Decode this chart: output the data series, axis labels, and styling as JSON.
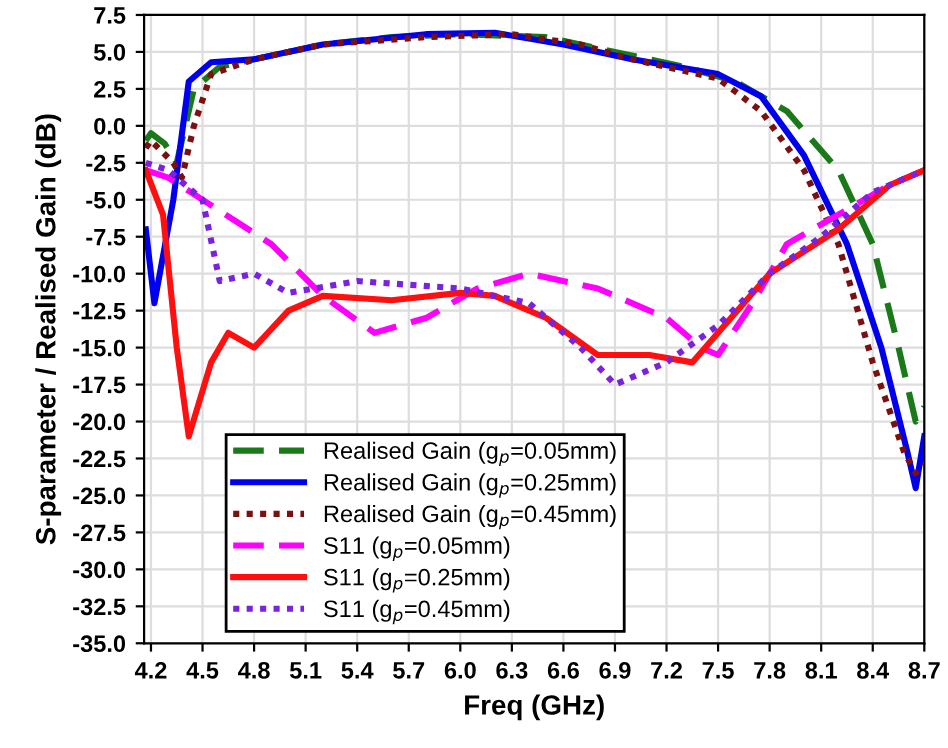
{
  "chart_data": {
    "type": "line",
    "xlabel": "Freq (GHz)",
    "ylabel": "S-parameter / Realised Gain (dB)",
    "xlim": [
      4.16,
      8.7
    ],
    "ylim": [
      -35,
      7.5
    ],
    "xticks": [
      {
        "value": 4.2,
        "label": "4.2"
      },
      {
        "value": 4.5,
        "label": "4.5"
      },
      {
        "value": 4.8,
        "label": "4.8"
      },
      {
        "value": 5.1,
        "label": "5.1"
      },
      {
        "value": 5.4,
        "label": "5.4"
      },
      {
        "value": 5.7,
        "label": "5.7"
      },
      {
        "value": 6.0,
        "label": "6.0"
      },
      {
        "value": 6.3,
        "label": "6.3"
      },
      {
        "value": 6.6,
        "label": "6.6"
      },
      {
        "value": 6.9,
        "label": "6.9"
      },
      {
        "value": 7.2,
        "label": "7.2"
      },
      {
        "value": 7.5,
        "label": "7.5"
      },
      {
        "value": 7.8,
        "label": "7.8"
      },
      {
        "value": 8.1,
        "label": "8.1"
      },
      {
        "value": 8.4,
        "label": "8.4"
      },
      {
        "value": 8.7,
        "label": "8.7"
      }
    ],
    "yticks": [
      {
        "value": 7.5,
        "label": "7.5"
      },
      {
        "value": 5,
        "label": "5.0"
      },
      {
        "value": 2.5,
        "label": "2.5"
      },
      {
        "value": 0,
        "label": "0.0"
      },
      {
        "value": -2.5,
        "label": "-2.5"
      },
      {
        "value": -5,
        "label": "-5.0"
      },
      {
        "value": -7.5,
        "label": "-7.5"
      },
      {
        "value": -10,
        "label": "-10.0"
      },
      {
        "value": -12.5,
        "label": "-12.5"
      },
      {
        "value": -15,
        "label": "-15.0"
      },
      {
        "value": -17.5,
        "label": "-17.5"
      },
      {
        "value": -20,
        "label": "-20.0"
      },
      {
        "value": -22.5,
        "label": "-22.5"
      },
      {
        "value": -25,
        "label": "-25.0"
      },
      {
        "value": -27.5,
        "label": "-27.5"
      },
      {
        "value": -30,
        "label": "-30.0"
      },
      {
        "value": -32.5,
        "label": "-32.5"
      },
      {
        "value": -35,
        "label": "-35.0"
      }
    ],
    "grid": true,
    "legend": "bottom left",
    "marker": "none",
    "series": [
      {
        "name": "Realised Gain (g$_{p}$=0.05mm)",
        "color": "#1a7a1a",
        "line_style": "dashed",
        "x": [
          4.17,
          4.2,
          4.28,
          4.35,
          4.45,
          4.6,
          4.8,
          5.2,
          5.6,
          6.0,
          6.5,
          6.9,
          7.3,
          7.6,
          7.9,
          8.2,
          8.4,
          8.55,
          8.65,
          8.7
        ],
        "values": [
          -1,
          -0.5,
          -1.2,
          -2.5,
          2.5,
          4,
          4.5,
          5.5,
          6,
          6.2,
          6,
          5,
          4,
          3,
          1,
          -3,
          -8,
          -15,
          -20,
          -19
        ]
      },
      {
        "name": "Realised Gain (g$_{p}$=0.25mm)",
        "color": "#0000ee",
        "line_style": "solid",
        "x": [
          4.17,
          4.22,
          4.33,
          4.42,
          4.55,
          4.8,
          5.2,
          5.8,
          6.2,
          6.6,
          7.0,
          7.5,
          7.75,
          8.0,
          8.25,
          8.45,
          8.6,
          8.65,
          8.7
        ],
        "values": [
          -7,
          -12,
          -5,
          3,
          4.3,
          4.5,
          5.5,
          6.2,
          6.3,
          5.5,
          4.5,
          3.5,
          2,
          -2,
          -8,
          -15,
          -22,
          -24.5,
          -21
        ]
      },
      {
        "name": "Realised Gain (g$_{p}$=0.45mm)",
        "color": "#7a1010",
        "line_style": "dotted",
        "x": [
          4.17,
          4.2,
          4.33,
          4.38,
          4.45,
          4.55,
          4.8,
          5.2,
          5.8,
          6.3,
          6.7,
          7.0,
          7.5,
          7.75,
          8.0,
          8.2,
          8.4,
          8.58,
          8.65,
          8.7
        ],
        "values": [
          -1.5,
          -1,
          -2.5,
          -3.5,
          0,
          3.5,
          4.5,
          5.5,
          6,
          6.2,
          5.5,
          4.5,
          3.2,
          1,
          -3,
          -8,
          -16,
          -22,
          -23.5,
          -23
        ]
      },
      {
        "name": "S11 (g$_{p}$=0.05mm)",
        "color": "#ff00ff",
        "line_style": "dashed",
        "x": [
          4.17,
          4.3,
          4.5,
          4.9,
          5.2,
          5.5,
          5.8,
          6.1,
          6.4,
          6.8,
          7.2,
          7.4,
          7.5,
          7.7,
          7.9,
          8.2,
          8.5,
          8.7
        ],
        "values": [
          -3,
          -3.5,
          -5,
          -8,
          -11.5,
          -14,
          -13,
          -11,
          -10,
          -11,
          -13,
          -15,
          -15.5,
          -12,
          -8,
          -6,
          -4,
          -3
        ]
      },
      {
        "name": "S11 (g$_{p}$=0.25mm)",
        "color": "#ff1010",
        "line_style": "solid",
        "x": [
          4.17,
          4.27,
          4.35,
          4.42,
          4.55,
          4.65,
          4.8,
          5.0,
          5.2,
          5.6,
          6.0,
          6.2,
          6.5,
          6.8,
          7.1,
          7.35,
          7.5,
          7.8,
          8.2,
          8.5,
          8.7
        ],
        "values": [
          -3,
          -6,
          -15,
          -21,
          -16,
          -14,
          -15,
          -12.5,
          -11.5,
          -11.8,
          -11.3,
          -11.5,
          -13,
          -15.5,
          -15.5,
          -16,
          -14,
          -10,
          -7,
          -4,
          -3
        ]
      },
      {
        "name": "S11 (g$_{p}$=0.45mm)",
        "color": "#7a22dd",
        "line_style": "dotted",
        "x": [
          4.17,
          4.3,
          4.5,
          4.6,
          4.8,
          5.0,
          5.4,
          6.0,
          6.4,
          6.7,
          6.9,
          7.2,
          7.5,
          7.8,
          8.1,
          8.4,
          8.7
        ],
        "values": [
          -2.5,
          -3,
          -5,
          -10.5,
          -10,
          -11.3,
          -10.5,
          -11,
          -12,
          -15,
          -17.5,
          -16,
          -13.5,
          -10,
          -7.5,
          -4.5,
          -3
        ]
      }
    ]
  }
}
